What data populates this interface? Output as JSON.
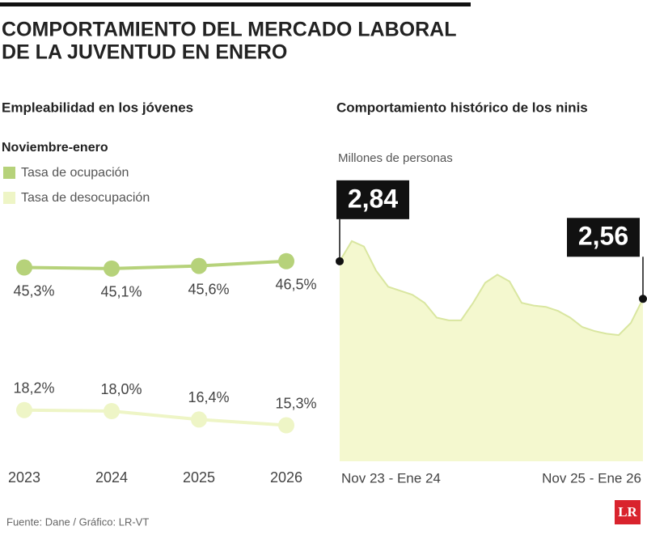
{
  "header": {
    "title": [
      "COMPORTAMIENTO DEL MERCADO LABORAL",
      "DE LA JUVENTUD EN ENERO"
    ]
  },
  "chart_data": [
    {
      "type": "line",
      "title": "Empleabilidad en los jóvenes",
      "subtitle": "Noviembre-enero",
      "categories": [
        "2023",
        "2024",
        "2025",
        "2026"
      ],
      "series": [
        {
          "name": "Tasa de ocupación",
          "color": "#b6d27a",
          "values": [
            45.3,
            45.1,
            45.6,
            46.5
          ],
          "value_labels": [
            "45,3%",
            "45,1%",
            "45,6%",
            "46,5%"
          ]
        },
        {
          "name": "Tasa de desocupación",
          "color": "#eef5c6",
          "values": [
            18.2,
            18.0,
            16.4,
            15.3
          ],
          "value_labels": [
            "18,2%",
            "18,0%",
            "16,4%",
            "15,3%"
          ]
        }
      ],
      "ylim": [
        10,
        50
      ]
    },
    {
      "type": "area",
      "title": "Comportamiento histórico de los ninis",
      "subtitle": "Millones de personas",
      "categories": [
        "Nov 23 - Ene 24",
        null,
        null,
        null,
        null,
        null,
        null,
        null,
        null,
        null,
        null,
        null,
        null,
        null,
        null,
        null,
        null,
        null,
        null,
        null,
        null,
        null,
        null,
        null,
        null,
        "Nov 25 - Ene 26"
      ],
      "values": [
        2.84,
        2.99,
        2.95,
        2.77,
        2.65,
        2.62,
        2.59,
        2.53,
        2.42,
        2.4,
        2.4,
        2.53,
        2.68,
        2.74,
        2.69,
        2.53,
        2.51,
        2.5,
        2.47,
        2.42,
        2.35,
        2.32,
        2.3,
        2.29,
        2.38,
        2.56
      ],
      "value_labels": [
        "2,84",
        null,
        null,
        null,
        null,
        null,
        null,
        null,
        null,
        null,
        null,
        null,
        null,
        null,
        null,
        null,
        null,
        null,
        null,
        null,
        null,
        null,
        null,
        null,
        null,
        "2,56"
      ],
      "color": "#f4f8cf",
      "line_color": "#d9e6a0",
      "ylim": [
        1.35,
        3.05
      ]
    }
  ],
  "footer": {
    "source": "Fuente: Dane / Gráfico: LR-VT",
    "logo": "LR"
  }
}
